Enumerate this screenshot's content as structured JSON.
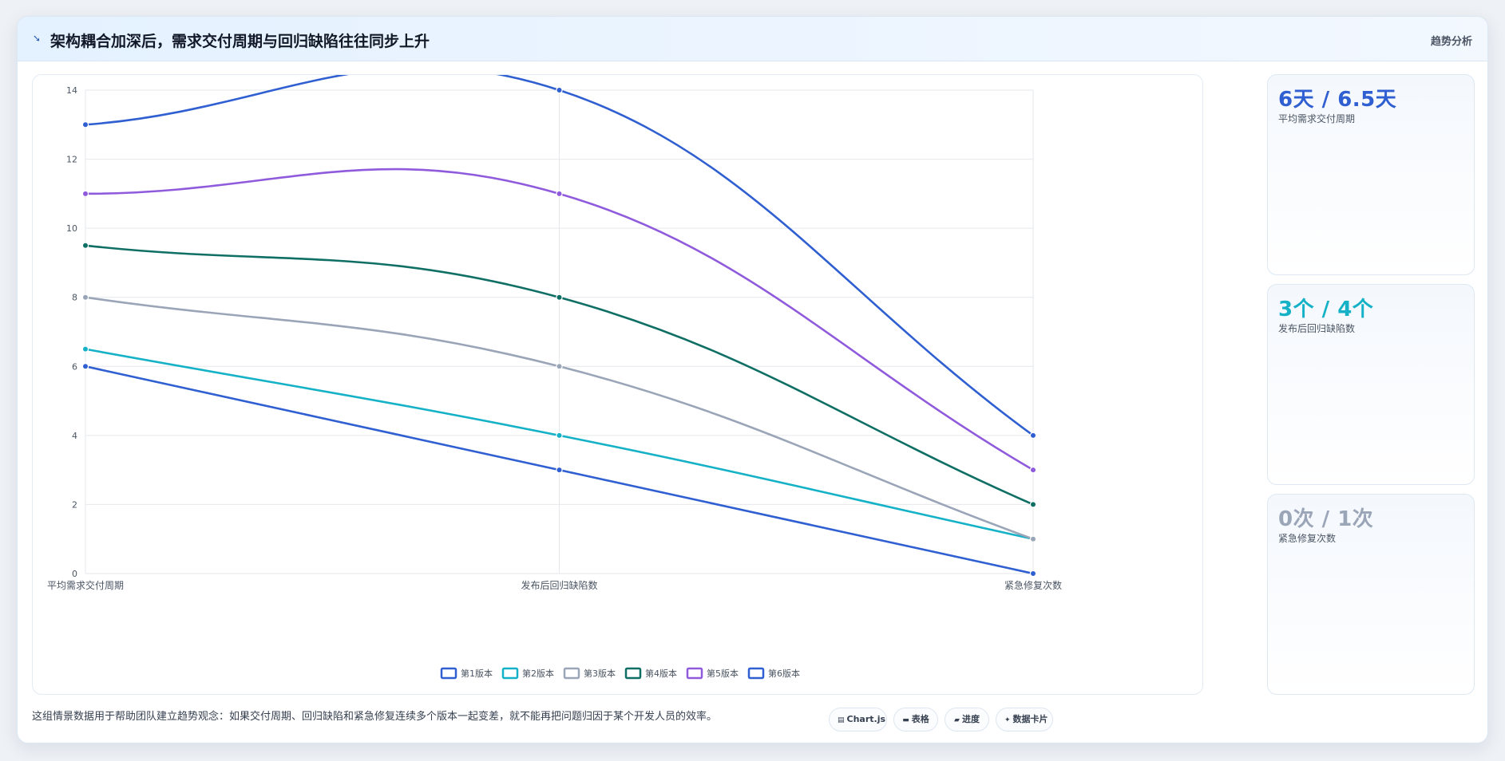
{
  "header": {
    "title": "架构耦合加深后，需求交付周期与回归缺陷往往同步上升",
    "title_icon": "trend-icon",
    "tag": "趋势分析"
  },
  "chart_data": {
    "type": "line",
    "categories": [
      "平均需求交付周期",
      "发布后回归缺陷数",
      "紧急修复次数"
    ],
    "ylim": [
      0,
      14
    ],
    "yticks": [
      0,
      2,
      4,
      6,
      8,
      10,
      12,
      14
    ],
    "grid": true,
    "legend_position": "bottom",
    "series": [
      {
        "name": "第1版本",
        "values": [
          6,
          3,
          0
        ],
        "color": "#2f5fd0"
      },
      {
        "name": "第2版本",
        "values": [
          6.5,
          4,
          1
        ],
        "color": "#14b1c7"
      },
      {
        "name": "第3版本",
        "values": [
          8,
          6,
          1
        ],
        "color": "#9aa5b8"
      },
      {
        "name": "第4版本",
        "values": [
          9.5,
          8,
          2
        ],
        "color": "#0f6f64"
      },
      {
        "name": "第5版本",
        "values": [
          11,
          11,
          3
        ],
        "color": "#8f5bdc"
      },
      {
        "name": "第6版本",
        "values": [
          13,
          14,
          4
        ],
        "color": "#2f5fd0"
      }
    ]
  },
  "stats": [
    {
      "value": "6天 / 6.5天",
      "label": "平均需求交付周期",
      "color": "#2f5fd0"
    },
    {
      "value": "3个 / 4个",
      "label": "发布后回归缺陷数",
      "color": "#14b1c7"
    },
    {
      "value": "0次 / 1次",
      "label": "紧急修复次数",
      "color": "#9aa5b8"
    }
  ],
  "footer": {
    "text": "这组情景数据用于帮助团队建立趋势观念：如果交付周期、回归缺陷和紧急修复连续多个版本一起变差，就不能再把问题归因于某个开发人员的效率。",
    "pills": [
      {
        "icon": "chart-icon",
        "label": "Chart.js"
      },
      {
        "icon": "table-icon",
        "label": "表格"
      },
      {
        "icon": "progress-icon",
        "label": "进度"
      },
      {
        "icon": "card-icon",
        "label": "数据卡片"
      }
    ]
  }
}
